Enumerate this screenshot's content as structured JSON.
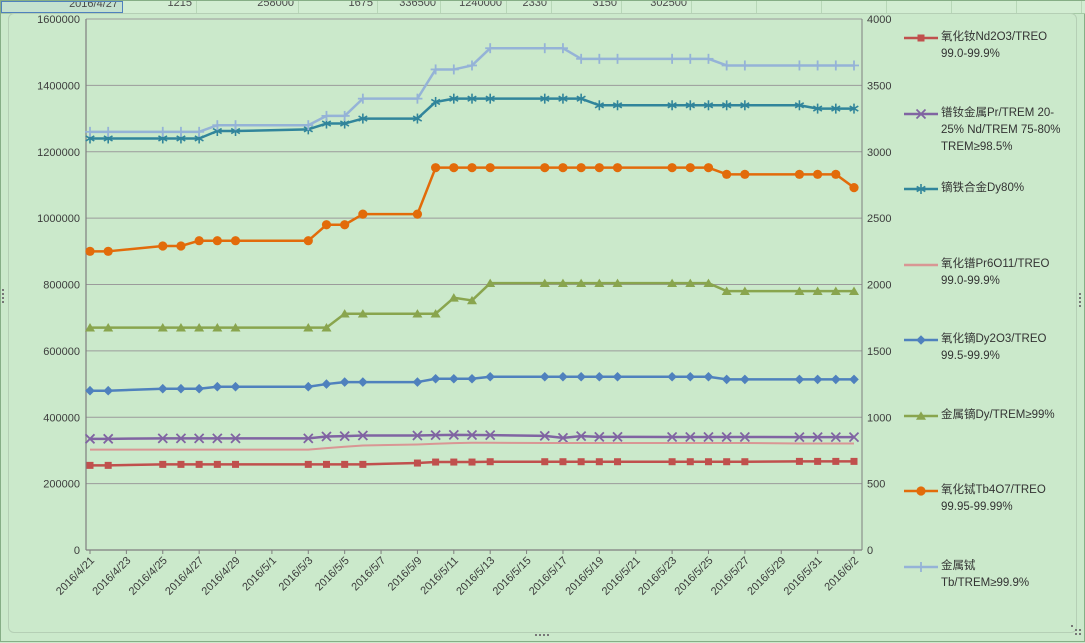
{
  "window": {
    "background": "#cbe9cb",
    "frame_border": "#b5cfb5"
  },
  "spreadsheet_row": {
    "cells": [
      "2016/4/27",
      "1215",
      "258000",
      "1675",
      "336500",
      "1240000",
      "2330",
      "3150",
      "302500"
    ]
  },
  "chart_data": {
    "type": "line",
    "title": "",
    "grid": true,
    "legend_position": "right",
    "x_axis": {
      "tick_labels": [
        "2016/4/21",
        "2016/4/23",
        "2016/4/25",
        "2016/4/27",
        "2016/4/29",
        "2016/5/1",
        "2016/5/3",
        "2016/5/5",
        "2016/5/7",
        "2016/5/9",
        "2016/5/11",
        "2016/5/13",
        "2016/5/15",
        "2016/5/17",
        "2016/5/19",
        "2016/5/21",
        "2016/5/23",
        "2016/5/25",
        "2016/5/27",
        "2016/5/29",
        "2016/5/31",
        "2016/6/2"
      ]
    },
    "left_axis": {
      "min": 0,
      "max": 1600000,
      "step": 200000,
      "tick_labels": [
        "0",
        "200000",
        "400000",
        "600000",
        "800000",
        "1000000",
        "1200000",
        "1400000",
        "1600000"
      ]
    },
    "right_axis": {
      "min": 0,
      "max": 4000,
      "step": 500,
      "tick_labels": [
        "0",
        "500",
        "1000",
        "1500",
        "2000",
        "2500",
        "3000",
        "3500",
        "4000"
      ]
    },
    "dates": [
      "2016/4/21",
      "2016/4/22",
      "2016/4/25",
      "2016/4/26",
      "2016/4/27",
      "2016/4/28",
      "2016/4/29",
      "2016/5/3",
      "2016/5/4",
      "2016/5/5",
      "2016/5/6",
      "2016/5/9",
      "2016/5/10",
      "2016/5/11",
      "2016/5/12",
      "2016/5/13",
      "2016/5/16",
      "2016/5/17",
      "2016/5/18",
      "2016/5/19",
      "2016/5/20",
      "2016/5/23",
      "2016/5/24",
      "2016/5/25",
      "2016/5/26",
      "2016/5/27",
      "2016/5/30",
      "2016/5/31",
      "2016/6/1",
      "2016/6/2"
    ],
    "day_offsets": [
      0,
      1,
      4,
      5,
      6,
      7,
      8,
      12,
      13,
      14,
      15,
      18,
      19,
      20,
      21,
      22,
      25,
      26,
      27,
      28,
      29,
      32,
      33,
      34,
      35,
      36,
      39,
      40,
      41,
      42
    ],
    "series": [
      {
        "name": "氧化钕Nd2O3/TREO 99.0-99.9%",
        "legend_lines": [
          "氧化钕Nd2O3/TREO",
          "99.0-99.9%"
        ],
        "axis": "left",
        "color": "#C0504D",
        "marker": "square",
        "values": [
          255000,
          255000,
          258000,
          258000,
          258000,
          258000,
          258000,
          258000,
          258000,
          258000,
          258000,
          262000,
          265000,
          265000,
          265000,
          266000,
          266000,
          266000,
          266000,
          266000,
          266000,
          266000,
          266000,
          266000,
          266000,
          266000,
          267000,
          267000,
          267000,
          267000
        ]
      },
      {
        "name": "镨钕金属Pr/TREM 20-25% Nd/TREM 75-80% TREM≥98.5%",
        "legend_lines": [
          "镨钕金属Pr/TREM 20-",
          "25% Nd/TREM 75-80%",
          "TREM≥98.5%"
        ],
        "axis": "left",
        "color": "#8064A2",
        "marker": "x",
        "values": [
          335000,
          335000,
          336500,
          336500,
          336500,
          336500,
          336500,
          336500,
          342000,
          343000,
          345000,
          345000,
          346000,
          347000,
          346500,
          346000,
          344000,
          338000,
          343000,
          341000,
          341000,
          340500,
          340500,
          340500,
          340500,
          340500,
          340000,
          340000,
          340000,
          340000
        ]
      },
      {
        "name": "镝铁合金Dy80%",
        "legend_lines": [
          "镝铁合金Dy80%"
        ],
        "axis": "left",
        "color": "#31859B",
        "marker": "asterisk",
        "values": [
          1240000,
          1240000,
          1240000,
          1240000,
          1240000,
          1262500,
          1262500,
          1267500,
          1285000,
          1285000,
          1300000,
          1300000,
          1350000,
          1360000,
          1360000,
          1360000,
          1360000,
          1360000,
          1360000,
          1340000,
          1340000,
          1340000,
          1340000,
          1340000,
          1340000,
          1340000,
          1340000,
          1330000,
          1330000,
          1330000
        ]
      },
      {
        "name": "氧化镨Pr6O11/TREO 99.0-99.9%",
        "legend_lines": [
          "氧化镨Pr6O11/TREO",
          "99.0-99.9%"
        ],
        "axis": "left",
        "color": "#D99694",
        "marker": "none",
        "values": [
          302500,
          302500,
          302500,
          302500,
          302500,
          302500,
          302500,
          302500,
          307000,
          311000,
          315000,
          318000,
          320000,
          322000,
          323000,
          323000,
          322500,
          322500,
          322500,
          322500,
          322500,
          322500,
          322500,
          322500,
          322500,
          322500,
          321000,
          321000,
          321000,
          321000
        ]
      },
      {
        "name": "氧化镝Dy2O3/TREO 99.5-99.9%",
        "legend_lines": [
          "氧化镝Dy2O3/TREO",
          "99.5-99.9%"
        ],
        "axis": "right",
        "color": "#4F81BD",
        "marker": "diamond",
        "values": [
          1200,
          1200,
          1215,
          1215,
          1215,
          1230,
          1230,
          1230,
          1250,
          1265,
          1265,
          1265,
          1290,
          1290,
          1290,
          1305,
          1305,
          1305,
          1305,
          1305,
          1305,
          1305,
          1305,
          1305,
          1285,
          1285,
          1285,
          1285,
          1285,
          1285
        ]
      },
      {
        "name": "金属镝Dy/TREM≥99%",
        "legend_lines": [
          "金属镝Dy/TREM≥99%"
        ],
        "axis": "right",
        "color": "#89A54E",
        "marker": "triangle",
        "values": [
          1675,
          1675,
          1675,
          1675,
          1675,
          1675,
          1675,
          1675,
          1675,
          1780,
          1780,
          1780,
          1780,
          1900,
          1880,
          2010,
          2010,
          2010,
          2010,
          2010,
          2010,
          2010,
          2010,
          2010,
          1950,
          1950,
          1950,
          1950,
          1950,
          1950
        ]
      },
      {
        "name": "氧化铽Tb4O7/TREO 99.95-99.99%",
        "legend_lines": [
          "氧化铽Tb4O7/TREO",
          "99.95-99.99%"
        ],
        "axis": "right",
        "color": "#E26B0A",
        "marker": "circle",
        "values": [
          2250,
          2250,
          2290,
          2290,
          2330,
          2330,
          2330,
          2330,
          2450,
          2450,
          2530,
          2530,
          2880,
          2880,
          2880,
          2880,
          2880,
          2880,
          2880,
          2880,
          2880,
          2880,
          2880,
          2880,
          2830,
          2830,
          2830,
          2830,
          2830,
          2730
        ]
      },
      {
        "name": "金属铽 Tb/TREM≥99.9%",
        "legend_lines": [
          "金属铽",
          "Tb/TREM≥99.9%"
        ],
        "axis": "right",
        "color": "#95B3D7",
        "marker": "plus",
        "values": [
          3150,
          3150,
          3150,
          3150,
          3150,
          3200,
          3200,
          3200,
          3270,
          3270,
          3400,
          3400,
          3620,
          3620,
          3650,
          3780,
          3780,
          3780,
          3700,
          3700,
          3700,
          3700,
          3700,
          3700,
          3650,
          3650,
          3650,
          3650,
          3650,
          3650
        ]
      }
    ],
    "colors": {
      "gridline": "#9b9b9b",
      "axis_line": "#7f7f7f",
      "label_text": "#3c3c3c"
    }
  }
}
